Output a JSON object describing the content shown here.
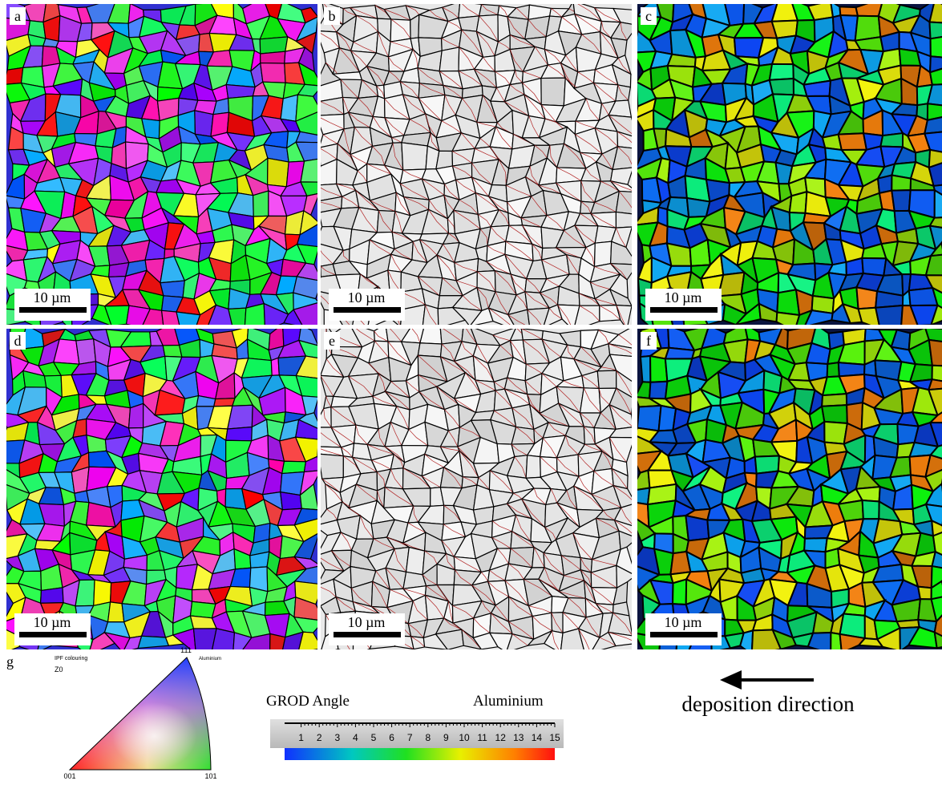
{
  "panels": [
    {
      "label": "a",
      "scale_bar": "10 µm",
      "style": "ipf"
    },
    {
      "label": "b",
      "scale_bar": "10 µm",
      "style": "kam"
    },
    {
      "label": "c",
      "scale_bar": "10 µm",
      "style": "grod"
    },
    {
      "label": "d",
      "scale_bar": "10 µm",
      "style": "ipf"
    },
    {
      "label": "e",
      "scale_bar": "10 µm",
      "style": "kam"
    },
    {
      "label": "f",
      "scale_bar": "10 µm",
      "style": "grod"
    }
  ],
  "legend": {
    "label": "g",
    "ipf": {
      "title": "IPF colouring",
      "subtitle": "Z0",
      "material": "Aluminium",
      "corners": {
        "top": "111",
        "left": "001",
        "right": "101"
      }
    },
    "grod": {
      "title": "GROD Angle",
      "material": "Aluminium",
      "ticks": [
        1,
        2,
        3,
        4,
        5,
        6,
        7,
        8,
        9,
        10,
        11,
        12,
        13,
        14,
        15
      ]
    }
  },
  "arrow_label": "deposition direction"
}
